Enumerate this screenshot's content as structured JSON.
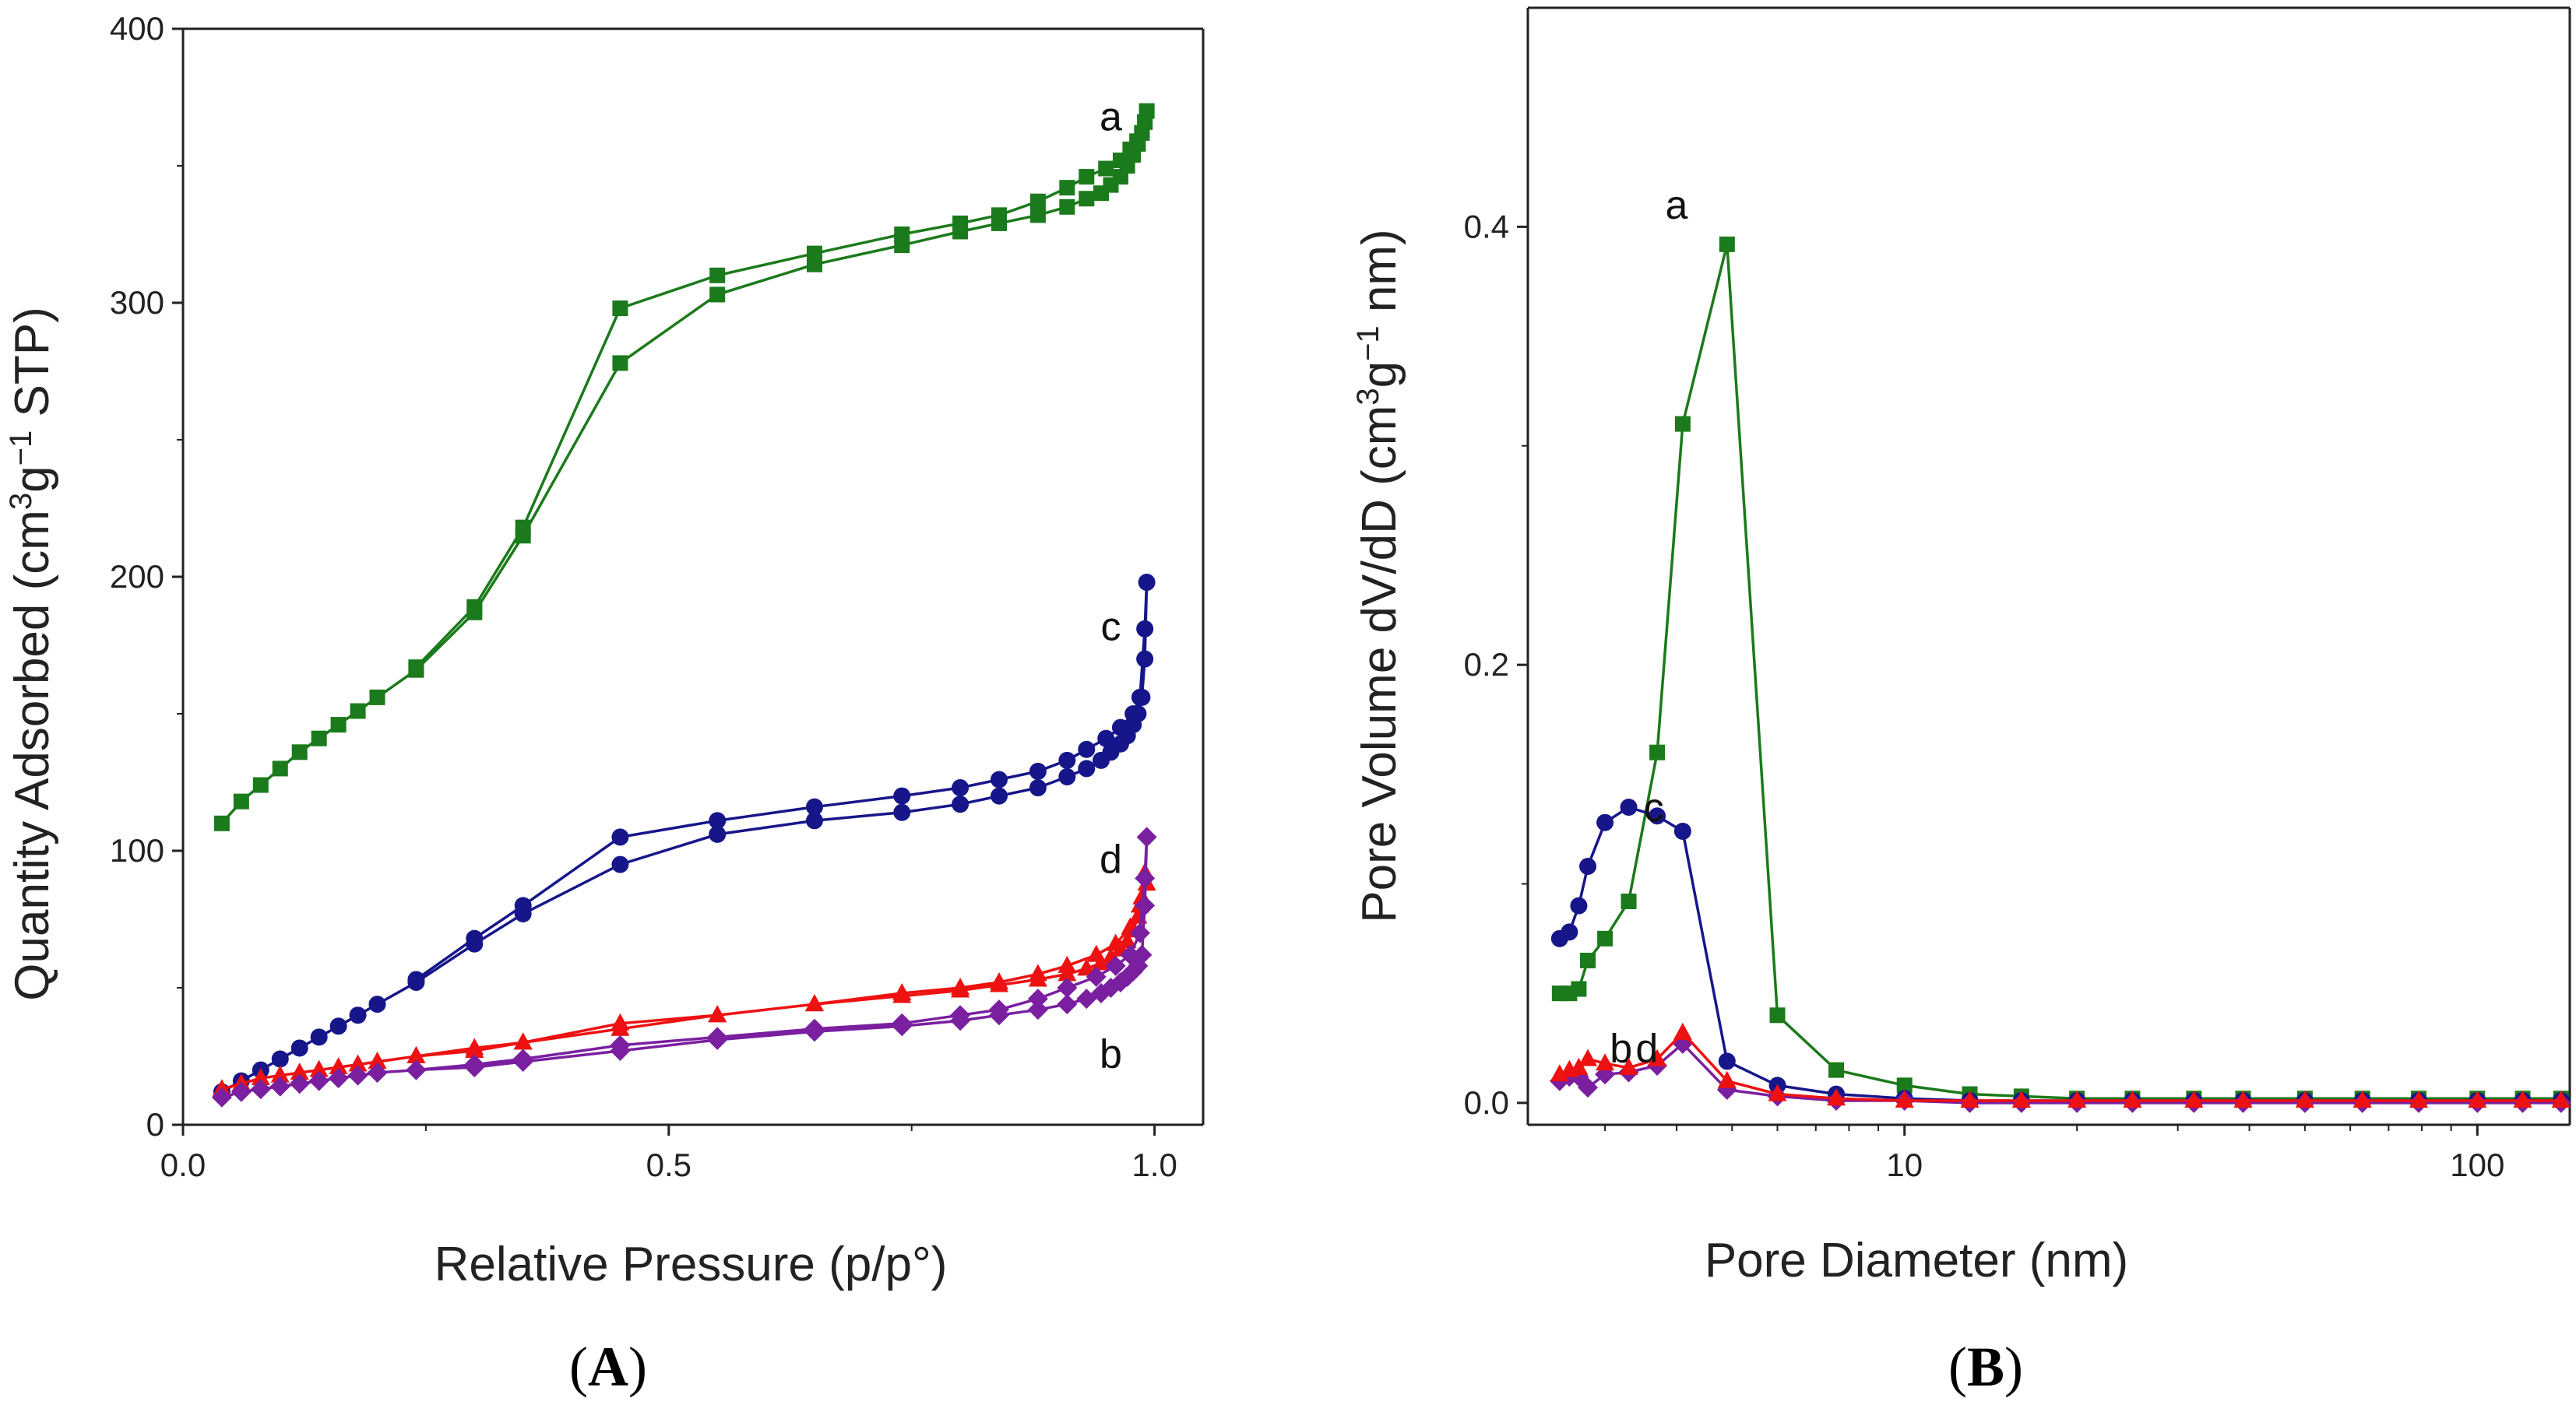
{
  "colors": {
    "a": "#1b7a1b",
    "b": "#7a1fa0",
    "c": "#16168a",
    "d": "#ee1111",
    "axis": "#222222"
  },
  "chart_data": [
    {
      "id": "A",
      "panel_label": "A",
      "panel_paren_open": "(",
      "panel_paren_close": ")",
      "type": "scatter",
      "title": "",
      "xlabel": "Relative Pressure (p/p°)",
      "ylabel_parts": {
        "pre": "Quantity Adsorbed (cm",
        "sup1": "3",
        "mid": "g",
        "sup2": "−1",
        "post": " STP)"
      },
      "xlim": [
        0,
        1.05
      ],
      "ylim": [
        0,
        400
      ],
      "xticks": [
        0,
        0.5,
        1.0
      ],
      "xtick_labels": [
        "0.0",
        "0.5",
        "1.0"
      ],
      "yticks": [
        0,
        100,
        200,
        300,
        400
      ],
      "ytick_labels": [
        "0",
        "100",
        "200",
        "300",
        "400"
      ],
      "series": [
        {
          "name": "a",
          "label": "a",
          "marker": "square",
          "label_at": [
            0.955,
            368
          ],
          "x": [
            0.04,
            0.06,
            0.08,
            0.1,
            0.12,
            0.14,
            0.16,
            0.18,
            0.2,
            0.24,
            0.3,
            0.35,
            0.45,
            0.55,
            0.65,
            0.74,
            0.8,
            0.84,
            0.88,
            0.91,
            0.93,
            0.945,
            0.955,
            0.965,
            0.972,
            0.978,
            0.983,
            0.987,
            0.99,
            0.992,
            0.99,
            0.987,
            0.982,
            0.975,
            0.965,
            0.95,
            0.93,
            0.91,
            0.88,
            0.84,
            0.8,
            0.74,
            0.65,
            0.55,
            0.45,
            0.35,
            0.3,
            0.24
          ],
          "y": [
            110,
            118,
            124,
            130,
            136,
            141,
            146,
            151,
            156,
            166,
            187,
            215,
            278,
            303,
            314,
            321,
            326,
            329,
            332,
            335,
            338,
            340,
            343,
            346,
            350,
            354,
            358,
            362,
            366,
            370,
            366,
            362,
            359,
            356,
            352,
            349,
            346,
            342,
            337,
            332,
            329,
            325,
            318,
            310,
            298,
            218,
            189,
            167
          ]
        },
        {
          "name": "c",
          "label": "c",
          "marker": "circle",
          "label_at": [
            0.955,
            182
          ],
          "x": [
            0.04,
            0.06,
            0.08,
            0.1,
            0.12,
            0.14,
            0.16,
            0.18,
            0.2,
            0.24,
            0.3,
            0.35,
            0.45,
            0.55,
            0.65,
            0.74,
            0.8,
            0.84,
            0.88,
            0.91,
            0.93,
            0.945,
            0.955,
            0.965,
            0.972,
            0.978,
            0.983,
            0.987,
            0.99,
            0.992,
            0.99,
            0.985,
            0.978,
            0.965,
            0.95,
            0.93,
            0.91,
            0.88,
            0.84,
            0.8,
            0.74,
            0.65,
            0.55,
            0.45,
            0.35,
            0.3,
            0.24
          ],
          "y": [
            12,
            16,
            20,
            24,
            28,
            32,
            36,
            40,
            44,
            52,
            66,
            77,
            95,
            106,
            111,
            114,
            117,
            120,
            123,
            127,
            130,
            133,
            136,
            139,
            142,
            146,
            150,
            156,
            170,
            198,
            181,
            156,
            150,
            145,
            141,
            137,
            133,
            129,
            126,
            123,
            120,
            116,
            111,
            105,
            80,
            68,
            53
          ]
        },
        {
          "name": "d",
          "label": "d",
          "marker": "triangle",
          "label_at": [
            0.955,
            97
          ],
          "x": [
            0.04,
            0.06,
            0.08,
            0.1,
            0.12,
            0.14,
            0.16,
            0.18,
            0.2,
            0.24,
            0.3,
            0.35,
            0.45,
            0.55,
            0.65,
            0.74,
            0.8,
            0.84,
            0.88,
            0.91,
            0.93,
            0.945,
            0.955,
            0.965,
            0.972,
            0.978,
            0.983,
            0.987,
            0.99,
            0.992,
            0.985,
            0.975,
            0.96,
            0.94,
            0.91,
            0.88,
            0.84,
            0.8,
            0.74,
            0.65,
            0.55,
            0.45,
            0.35,
            0.3,
            0.24
          ],
          "y": [
            13,
            15,
            17,
            18,
            19,
            20,
            21,
            22,
            23,
            25,
            27,
            30,
            35,
            40,
            44,
            47,
            49,
            51,
            53,
            55,
            57,
            59,
            61,
            64,
            67,
            71,
            76,
            83,
            92,
            88,
            80,
            72,
            66,
            62,
            58,
            55,
            52,
            50,
            48,
            44,
            40,
            37,
            30,
            28,
            25
          ]
        },
        {
          "name": "b",
          "label": "b",
          "marker": "diamond",
          "label_at": [
            0.955,
            26
          ],
          "x": [
            0.04,
            0.06,
            0.08,
            0.1,
            0.12,
            0.14,
            0.16,
            0.18,
            0.2,
            0.24,
            0.3,
            0.35,
            0.45,
            0.55,
            0.65,
            0.74,
            0.8,
            0.84,
            0.88,
            0.91,
            0.93,
            0.945,
            0.955,
            0.965,
            0.972,
            0.978,
            0.983,
            0.987,
            0.99,
            0.992,
            0.99,
            0.985,
            0.975,
            0.96,
            0.94,
            0.91,
            0.88,
            0.84,
            0.8,
            0.74,
            0.65,
            0.55,
            0.45,
            0.35,
            0.3,
            0.24
          ],
          "y": [
            10,
            12,
            13,
            14,
            15,
            16,
            17,
            18,
            19,
            20,
            21,
            23,
            27,
            31,
            34,
            36,
            38,
            40,
            42,
            44,
            46,
            48,
            50,
            52,
            54,
            56,
            58,
            62,
            80,
            105,
            90,
            70,
            62,
            58,
            54,
            50,
            46,
            42,
            40,
            37,
            35,
            32,
            29,
            24,
            22,
            20
          ]
        }
      ]
    },
    {
      "id": "B",
      "panel_label": "B",
      "panel_paren_open": "(",
      "panel_paren_close": ")",
      "type": "line",
      "title": "",
      "xlabel": "Pore Diameter (nm)",
      "ylabel_parts": {
        "pre": "Pore Volume dV/dD (cm",
        "sup1": "3",
        "mid": "g",
        "sup2": "−1",
        "post": " nm)"
      },
      "xscale": "log",
      "xlim": [
        2.2,
        145
      ],
      "ylim": [
        -0.01,
        0.5
      ],
      "xticks": [
        10,
        100
      ],
      "xtick_labels": [
        "10",
        "100"
      ],
      "yticks": [
        0.0,
        0.2,
        0.4
      ],
      "ytick_labels": [
        "0.0",
        "0.2",
        "0.4"
      ],
      "series": [
        {
          "name": "a",
          "label": "a",
          "marker": "square",
          "label_at": [
            4.0,
            0.41
          ],
          "x": [
            2.5,
            2.6,
            2.7,
            2.8,
            3.0,
            3.3,
            3.7,
            4.1,
            4.9,
            6.0,
            7.6,
            10.0,
            13.0,
            16.0,
            20.0,
            25.0,
            32.0,
            39.0,
            50.0,
            63.0,
            79.0,
            100.0,
            120.0,
            140.0
          ],
          "y": [
            0.05,
            0.05,
            0.052,
            0.065,
            0.075,
            0.092,
            0.16,
            0.31,
            0.392,
            0.04,
            0.015,
            0.008,
            0.004,
            0.003,
            0.002,
            0.002,
            0.002,
            0.002,
            0.002,
            0.002,
            0.002,
            0.002,
            0.002,
            0.002
          ]
        },
        {
          "name": "c",
          "label": "c",
          "marker": "circle",
          "label_at": [
            3.65,
            0.135
          ],
          "x": [
            2.5,
            2.6,
            2.7,
            2.8,
            3.0,
            3.3,
            3.7,
            4.1,
            4.9,
            6.0,
            7.6,
            10.0,
            13.0,
            16.0,
            20.0,
            25.0,
            32.0,
            39.0,
            50.0,
            63.0,
            79.0,
            100.0,
            120.0,
            140.0
          ],
          "y": [
            0.075,
            0.078,
            0.09,
            0.108,
            0.128,
            0.135,
            0.131,
            0.124,
            0.019,
            0.008,
            0.004,
            0.002,
            0.001,
            0.001,
            0.001,
            0.001,
            0.001,
            0.001,
            0.001,
            0.001,
            0.001,
            0.001,
            0.001,
            0.001
          ]
        },
        {
          "name": "b",
          "label": "b",
          "marker": "diamond",
          "label_at": [
            3.2,
            0.025
          ],
          "x": [
            2.5,
            2.6,
            2.7,
            2.8,
            3.0,
            3.3,
            3.7,
            4.1,
            4.9,
            6.0,
            7.6,
            10.0,
            13.0,
            16.0,
            20.0,
            25.0,
            32.0,
            39.0,
            50.0,
            63.0,
            79.0,
            100.0,
            120.0,
            140.0
          ],
          "y": [
            0.01,
            0.012,
            0.012,
            0.007,
            0.013,
            0.014,
            0.017,
            0.027,
            0.006,
            0.003,
            0.001,
            0.001,
            0.0,
            0.0,
            0.0,
            0.0,
            0.0,
            0.0,
            0.0,
            0.0,
            0.0,
            0.0,
            0.0,
            0.0
          ]
        },
        {
          "name": "d",
          "label": "d",
          "marker": "triangle",
          "label_at": [
            3.55,
            0.025
          ],
          "x": [
            2.5,
            2.6,
            2.7,
            2.8,
            3.0,
            3.3,
            3.7,
            4.1,
            4.9,
            6.0,
            7.6,
            10.0,
            13.0,
            16.0,
            20.0,
            25.0,
            32.0,
            39.0,
            50.0,
            63.0,
            79.0,
            100.0,
            120.0,
            140.0
          ],
          "y": [
            0.013,
            0.015,
            0.016,
            0.02,
            0.018,
            0.016,
            0.02,
            0.032,
            0.01,
            0.004,
            0.002,
            0.001,
            0.001,
            0.001,
            0.001,
            0.001,
            0.001,
            0.001,
            0.001,
            0.001,
            0.001,
            0.001,
            0.001,
            0.001
          ]
        }
      ]
    }
  ]
}
